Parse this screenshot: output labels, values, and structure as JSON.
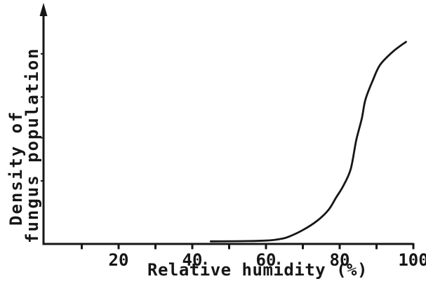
{
  "chart_data": {
    "type": "line",
    "title": "",
    "xlabel": "Relative humidity (%)",
    "ylabel": "Density of fungus population",
    "ylabel_lines": [
      "Density of",
      "fungus population"
    ],
    "xlim": [
      0,
      100
    ],
    "ylim": [
      0,
      100
    ],
    "y_axis_unlabeled": true,
    "grid": false,
    "legend": false,
    "x_ticks": [
      10,
      20,
      30,
      40,
      50,
      60,
      70,
      80,
      90,
      100
    ],
    "x_tick_labels": [
      "20",
      "40",
      "60",
      "80",
      "100"
    ],
    "x_tick_label_values": [
      20,
      40,
      60,
      80,
      100
    ],
    "y_ticks_minor": [
      26,
      44,
      61,
      79
    ],
    "ink_color": "#161616",
    "background_color": "#ffffff",
    "series": [
      {
        "name": "fungus population density",
        "x": [
          45,
          55,
          61,
          64,
          66,
          70,
          74,
          77,
          79,
          81,
          83,
          84.5,
          86,
          87,
          89,
          91,
          94.5,
          98
        ],
        "y": [
          0.8,
          0.9,
          1.2,
          1.8,
          2.6,
          5.5,
          9.5,
          14,
          19,
          24,
          31,
          43,
          52,
          60,
          68,
          74.5,
          80,
          84
        ]
      }
    ]
  }
}
